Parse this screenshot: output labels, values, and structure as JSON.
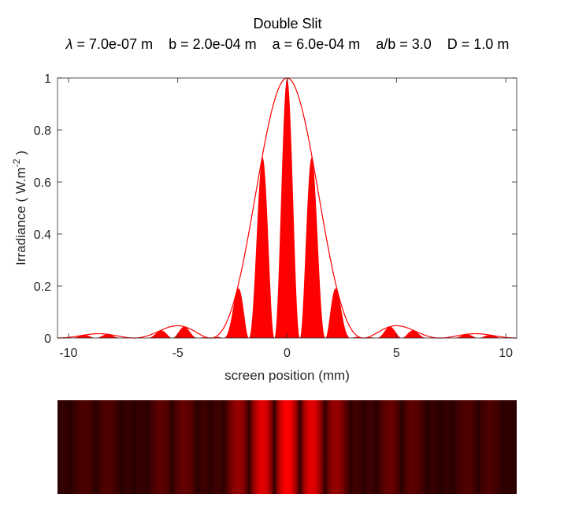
{
  "chart_data": {
    "type": "line",
    "title": "Double Slit",
    "subtitle": {
      "lambda_symbol": "λ",
      "rest": " = 7.0e-07 m    b = 2.0e-04 m    a = 6.0e-04 m    a/b = 3.0    D = 1.0 m"
    },
    "parameters": {
      "wavelength_m": 7e-07,
      "slit_width_b_m": 0.0002,
      "slit_separation_a_m": 0.0006,
      "a_over_b": 3.0,
      "screen_distance_D_m": 1.0
    },
    "xlabel": "screen position  (mm)",
    "ylabel_main": "Irradiance  ( W.m",
    "ylabel_sup": "-2",
    "ylabel_close": " )",
    "xlim": [
      -10.5,
      10.5
    ],
    "ylim": [
      0,
      1.0
    ],
    "xticks": [
      "-10",
      "-5",
      "0",
      "5",
      "10"
    ],
    "xtick_values": [
      -10,
      -5,
      0,
      5,
      10
    ],
    "yticks": [
      "0",
      "0.2",
      "0.4",
      "0.6",
      "0.8",
      "1"
    ],
    "ytick_values": [
      0,
      0.2,
      0.4,
      0.6,
      0.8,
      1
    ],
    "grid": false,
    "series": [
      {
        "role": "envelope",
        "formula": "sinc^2(pi*b*y/(lambda*D))",
        "color": "#ff0000"
      },
      {
        "role": "irradiance",
        "formula": "sinc^2(pi*b*y/(lambda*D)) * cos^2(pi*a*y/(lambda*D))",
        "color": "#ff0000",
        "filled": true
      }
    ],
    "fringe_image": {
      "colormap": "red",
      "range_mm": [
        -10.5,
        10.5
      ],
      "gamma": 0.4
    }
  }
}
